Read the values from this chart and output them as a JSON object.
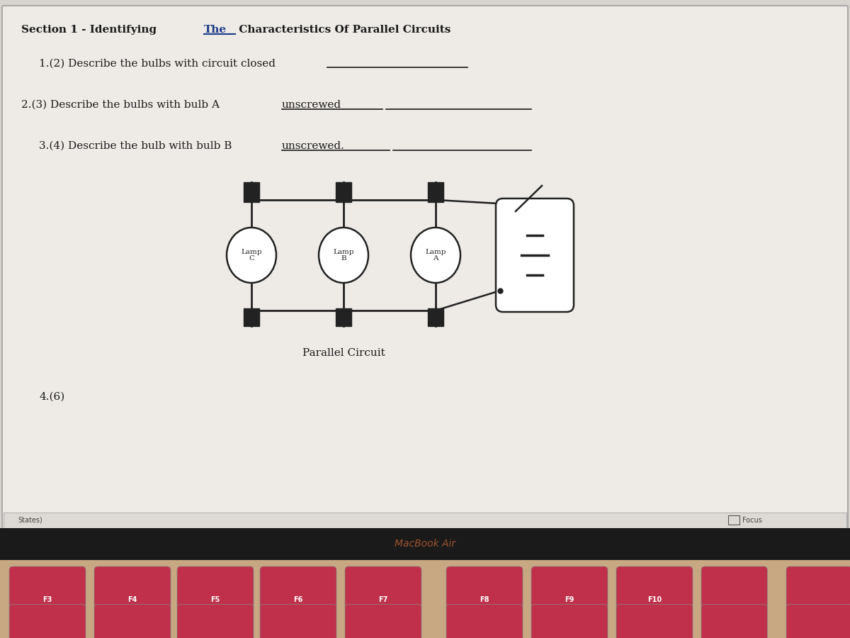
{
  "bg_color_top": "#d8d5d0",
  "bg_color_screen": "#e8e6e2",
  "bg_color_keyboard_bar": "#1a1a1a",
  "bg_color_keyboard": "#c8a882",
  "key_color": "#c0304a",
  "title_part1": "Section 1 - Identifying ",
  "title_the": "The",
  "title_part2": " Characteristics Of Parallel Circuits",
  "q1": "1.(2) Describe the bulbs with circuit closed",
  "q2_part1": "2.(3) Describe the bulbs with bulb A ",
  "q2_underlined": "unscrewed",
  "q3_part1": "3.(4) Describe the bulb with bulb B ",
  "q3_underlined": "unscrewed.",
  "q4": "4.(6)",
  "parallel_label": "Parallel Circuit",
  "macbook_label": "MacBook Air",
  "lamp_labels": [
    "Lamp\nC",
    "Lamp\nB",
    "Lamp\nA"
  ],
  "focus_text": "Focus",
  "states_text": "States)",
  "f_keys": [
    "F3",
    "F4",
    "F5",
    "F6",
    "F7",
    "F8",
    "F9",
    "F10"
  ],
  "screen_white_color": "#eeebe6",
  "line_color": "#222222",
  "text_color": "#1a1a1a",
  "underline_color": "#1a3a8a"
}
